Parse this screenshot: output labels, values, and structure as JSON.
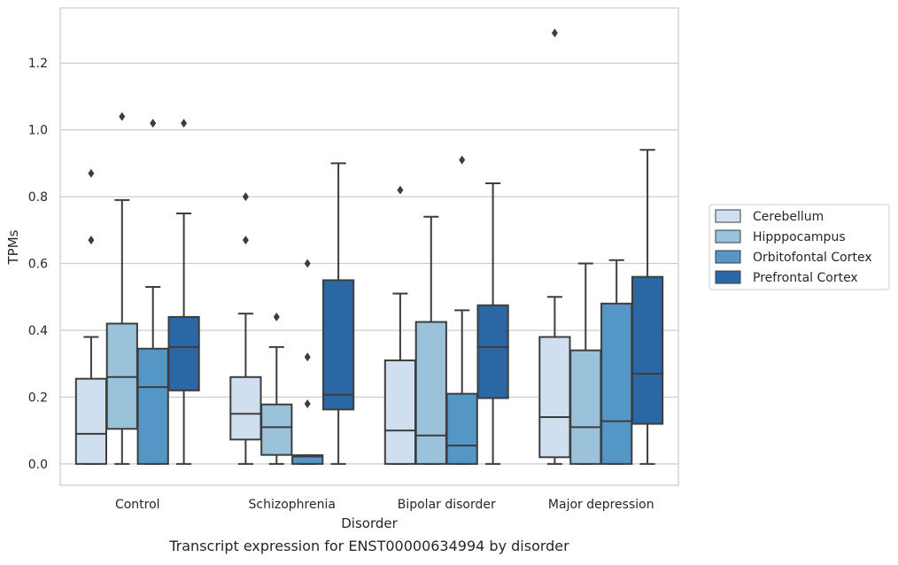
{
  "chart_data": {
    "type": "boxplot",
    "title": "Transcript expression for ENST00000634994 by disorder",
    "xlabel": "Disorder",
    "ylabel": "TPMs",
    "ylim": [
      -0.064,
      1.365
    ],
    "yticks": [
      "0.0",
      "0.2",
      "0.4",
      "0.6",
      "0.8",
      "1.0",
      "1.2"
    ],
    "grid": true,
    "legend_position": "right",
    "categories": [
      "Control",
      "Schizophrenia",
      "Bipolar disorder",
      "Major depression"
    ],
    "series": [
      {
        "name": "Cerebellum",
        "color": "#cfdff0",
        "boxes": [
          {
            "whislo": 0.0,
            "q1": 0.0,
            "med": 0.09,
            "q3": 0.255,
            "whishi": 0.38,
            "fliers": [
              0.67,
              0.87
            ]
          },
          {
            "whislo": 0.0,
            "q1": 0.073,
            "med": 0.15,
            "q3": 0.26,
            "whishi": 0.45,
            "fliers": [
              0.67,
              0.8
            ]
          },
          {
            "whislo": 0.0,
            "q1": 0.0,
            "med": 0.1,
            "q3": 0.31,
            "whishi": 0.51,
            "fliers": [
              0.82
            ]
          },
          {
            "whislo": 0.0,
            "q1": 0.02,
            "med": 0.14,
            "q3": 0.38,
            "whishi": 0.5,
            "fliers": [
              1.29
            ]
          }
        ]
      },
      {
        "name": "Hipppocampus",
        "color": "#9ac3db",
        "boxes": [
          {
            "whislo": 0.0,
            "q1": 0.105,
            "med": 0.26,
            "q3": 0.42,
            "whishi": 0.79,
            "fliers": [
              1.04
            ]
          },
          {
            "whislo": 0.0,
            "q1": 0.027,
            "med": 0.11,
            "q3": 0.178,
            "whishi": 0.35,
            "fliers": [
              0.44
            ]
          },
          {
            "whislo": 0.0,
            "q1": 0.0,
            "med": 0.085,
            "q3": 0.425,
            "whishi": 0.74,
            "fliers": []
          },
          {
            "whislo": 0.0,
            "q1": 0.0,
            "med": 0.11,
            "q3": 0.34,
            "whishi": 0.6,
            "fliers": []
          }
        ]
      },
      {
        "name": "Orbitofontal Cortex",
        "color": "#5496c5",
        "boxes": [
          {
            "whislo": 0.0,
            "q1": 0.0,
            "med": 0.23,
            "q3": 0.345,
            "whishi": 0.53,
            "fliers": [
              1.02
            ]
          },
          {
            "whislo": 0.0,
            "q1": 0.0,
            "med": 0.022,
            "q3": 0.026,
            "whishi": 0.026,
            "fliers": [
              0.18,
              0.32,
              0.6
            ]
          },
          {
            "whislo": 0.0,
            "q1": 0.0,
            "med": 0.055,
            "q3": 0.21,
            "whishi": 0.46,
            "fliers": [
              0.91
            ]
          },
          {
            "whislo": 0.0,
            "q1": 0.0,
            "med": 0.128,
            "q3": 0.48,
            "whishi": 0.61,
            "fliers": []
          }
        ]
      },
      {
        "name": "Prefrontal Cortex",
        "color": "#2c67a5",
        "boxes": [
          {
            "whislo": 0.0,
            "q1": 0.22,
            "med": 0.35,
            "q3": 0.44,
            "whishi": 0.75,
            "fliers": [
              1.02
            ]
          },
          {
            "whislo": 0.0,
            "q1": 0.163,
            "med": 0.207,
            "q3": 0.55,
            "whishi": 0.9,
            "fliers": []
          },
          {
            "whislo": 0.0,
            "q1": 0.197,
            "med": 0.35,
            "q3": 0.475,
            "whishi": 0.84,
            "fliers": []
          },
          {
            "whislo": 0.0,
            "q1": 0.12,
            "med": 0.27,
            "q3": 0.56,
            "whishi": 0.94,
            "fliers": []
          }
        ]
      }
    ]
  }
}
